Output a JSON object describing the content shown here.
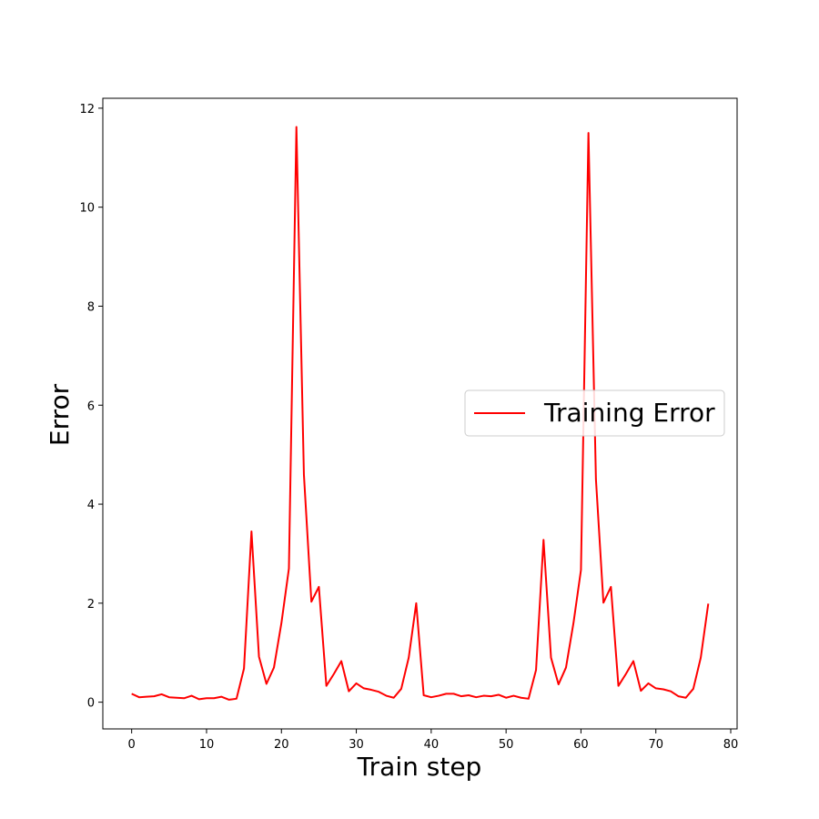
{
  "chart_data": {
    "type": "line",
    "title": "",
    "xlabel": "Train step",
    "ylabel": "Error",
    "xlim": [
      -3.85,
      80.85
    ],
    "ylim": [
      -0.54,
      12.2
    ],
    "xticks": [
      0,
      10,
      20,
      30,
      40,
      50,
      60,
      70,
      80
    ],
    "yticks": [
      0,
      2,
      4,
      6,
      8,
      10,
      12
    ],
    "xtick_labels": [
      "0",
      "10",
      "20",
      "30",
      "40",
      "50",
      "60",
      "70",
      "80"
    ],
    "ytick_labels": [
      "0",
      "2",
      "4",
      "6",
      "8",
      "10",
      "12"
    ],
    "legend_position": "center-right",
    "grid": false,
    "series": [
      {
        "name": "Training Error",
        "color": "#ff0000",
        "x": [
          0,
          1,
          2,
          3,
          4,
          5,
          6,
          7,
          8,
          9,
          10,
          11,
          12,
          13,
          14,
          15,
          16,
          17,
          18,
          19,
          20,
          21,
          22,
          23,
          24,
          25,
          26,
          27,
          28,
          29,
          30,
          31,
          32,
          33,
          34,
          35,
          36,
          37,
          38,
          39,
          40,
          41,
          42,
          43,
          44,
          45,
          46,
          47,
          48,
          49,
          50,
          51,
          52,
          53,
          54,
          55,
          56,
          57,
          58,
          59,
          60,
          61,
          62,
          63,
          64,
          65,
          66,
          67,
          68,
          69,
          70,
          71,
          72,
          73,
          74,
          75,
          76,
          77
        ],
        "values": [
          0.17,
          0.1,
          0.11,
          0.12,
          0.16,
          0.1,
          0.09,
          0.08,
          0.13,
          0.06,
          0.08,
          0.08,
          0.11,
          0.05,
          0.07,
          0.68,
          3.45,
          0.92,
          0.37,
          0.7,
          1.6,
          2.7,
          11.62,
          4.6,
          2.03,
          2.33,
          0.33,
          0.57,
          0.83,
          0.22,
          0.38,
          0.28,
          0.25,
          0.21,
          0.13,
          0.09,
          0.27,
          0.9,
          2.0,
          0.14,
          0.1,
          0.13,
          0.17,
          0.17,
          0.12,
          0.14,
          0.1,
          0.13,
          0.12,
          0.15,
          0.09,
          0.13,
          0.09,
          0.07,
          0.65,
          3.28,
          0.9,
          0.36,
          0.7,
          1.6,
          2.67,
          11.5,
          4.5,
          2.01,
          2.33,
          0.33,
          0.57,
          0.83,
          0.23,
          0.38,
          0.28,
          0.26,
          0.22,
          0.12,
          0.09,
          0.27,
          0.9,
          1.99
        ]
      }
    ]
  }
}
